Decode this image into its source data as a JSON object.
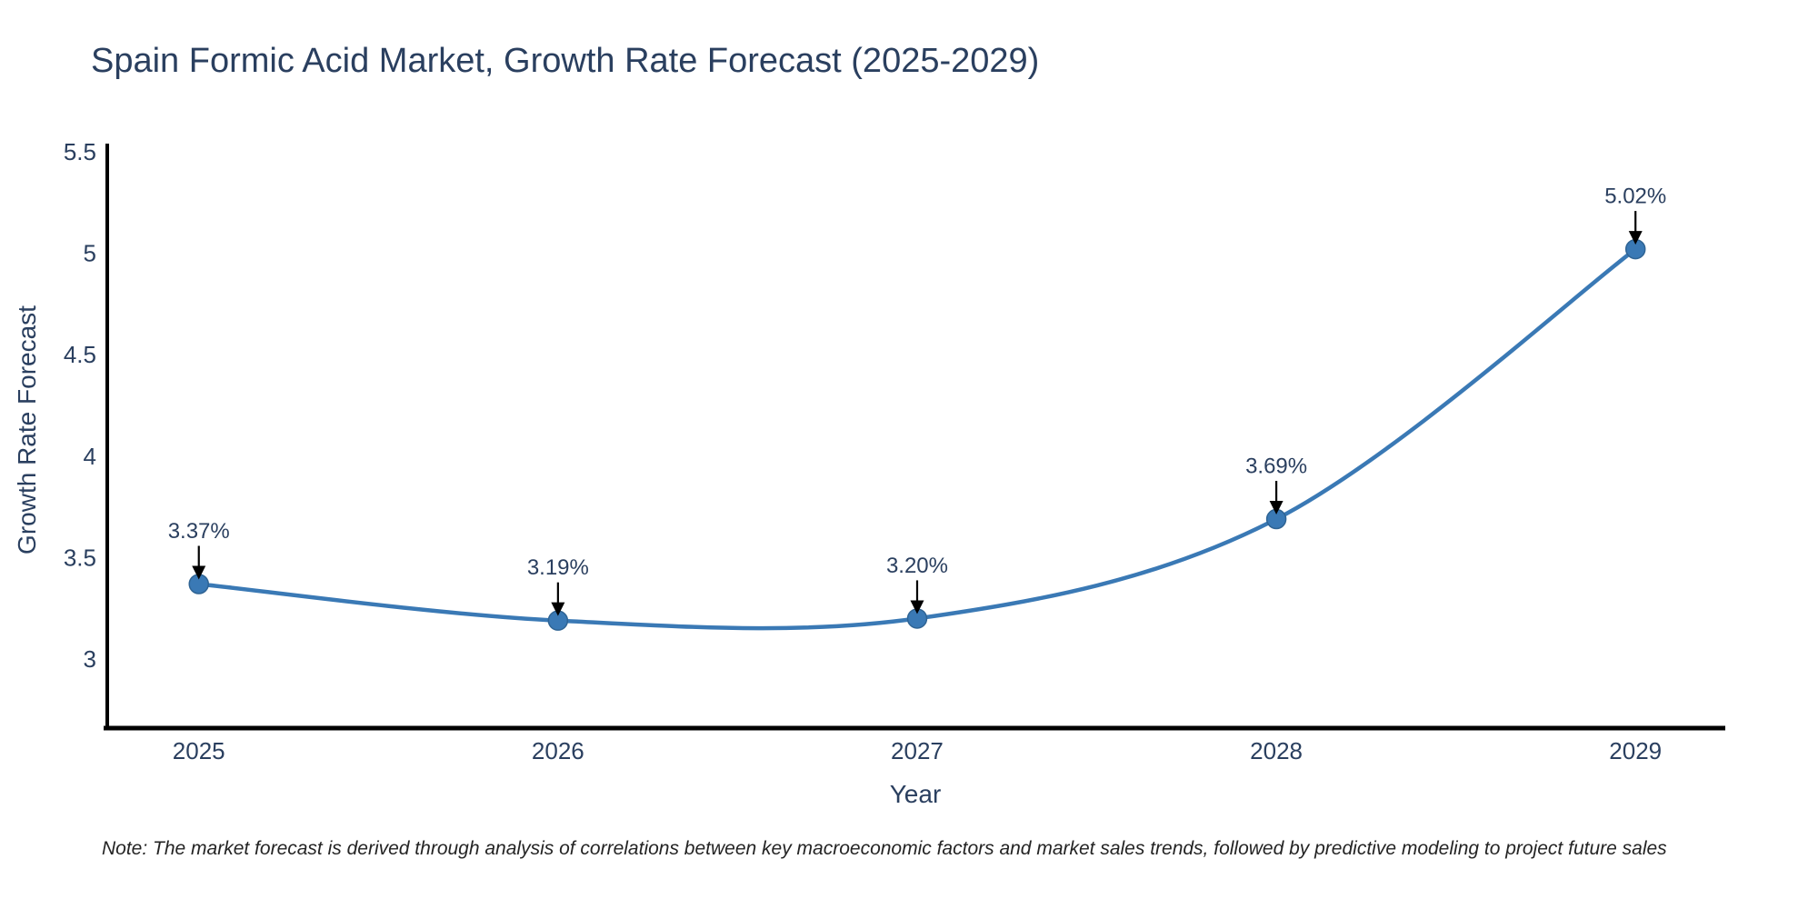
{
  "title": "Spain Formic Acid Market, Growth Rate Forecast (2025-2029)",
  "note": "Note: The market forecast is derived through analysis of correlations between key macroeconomic factors and market sales trends, followed by predictive modeling to project future sales",
  "chart_data": {
    "type": "line",
    "title": "Spain Formic Acid Market, Growth Rate Forecast (2025-2029)",
    "xlabel": "Year",
    "ylabel": "Growth Rate Forecast",
    "x": [
      2025,
      2026,
      2027,
      2028,
      2029
    ],
    "y": [
      3.37,
      3.19,
      3.2,
      3.69,
      5.02
    ],
    "point_labels": [
      "3.37%",
      "3.19%",
      "3.20%",
      "3.69%",
      "5.02%"
    ],
    "xtick_labels": [
      "2025",
      "2026",
      "2027",
      "2028",
      "2029"
    ],
    "ytick_values": [
      3,
      3.5,
      4,
      4.5,
      5,
      5.5
    ],
    "ytick_labels": [
      "3",
      "3.5",
      "4",
      "4.5",
      "5",
      "5.5"
    ],
    "xlim": [
      2024.74,
      2029.25
    ],
    "ylim": [
      2.66,
      5.54
    ],
    "grid": false,
    "legend_position": "none",
    "line_shape": "spline",
    "line_color": "#3a79b5",
    "marker_color": "#3a79b5",
    "marker_edge_color": "#2f6494",
    "axis_color": "#000000",
    "tick_color": "#2a3f5f",
    "annotation_color": "#2a3f5f",
    "arrow_color": "#000000"
  }
}
